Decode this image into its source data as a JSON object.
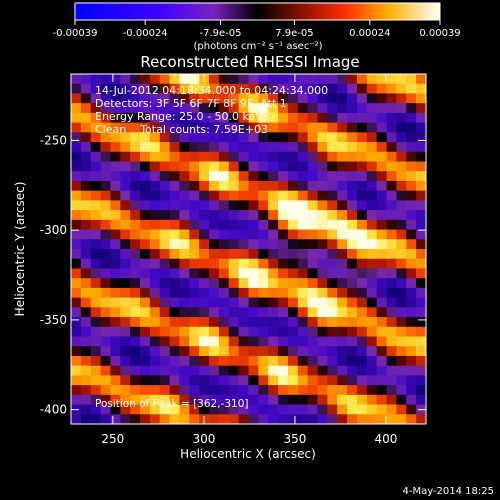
{
  "chart_data": {
    "type": "heatmap",
    "title": "Reconstructed RHESSI Image",
    "xlabel": "Heliocentric X (arcsec)",
    "ylabel": "Heliocentric Y (arcsec)",
    "xlim": [
      227,
      422
    ],
    "ylim": [
      -408,
      -213
    ],
    "x_ticks": [
      250,
      300,
      350,
      400
    ],
    "y_ticks": [
      -250,
      -300,
      -350,
      -400
    ],
    "colorbar": {
      "vmin": -0.00039,
      "vmax": 0.00039,
      "ticks": [
        "-0.00039",
        "-0.00024",
        "-7.9e-05",
        "7.9e-05",
        "0.00024",
        "0.00039"
      ],
      "tick_values": [
        -0.00039,
        -0.00024,
        -7.9e-05,
        7.9e-05,
        0.00024,
        0.00039
      ],
      "units": "(photons cm⁻² s⁻¹ asec⁻²)"
    },
    "info_lines": [
      "14-Jul-2012 04:18:34.000 to 04:24:34.000",
      "Detectors: 3F 5F 6F 7F 8F 9F, Att 1",
      "Energy Range: 25.0 - 50.0 keV",
      "Clean    Total counts: 7.59E+03"
    ],
    "peak_label": "Position of Peak = [362,-310]",
    "peak": {
      "x": 362,
      "y": -310
    },
    "grid": false
  },
  "date_stamp": "4-May-2014 18:25"
}
